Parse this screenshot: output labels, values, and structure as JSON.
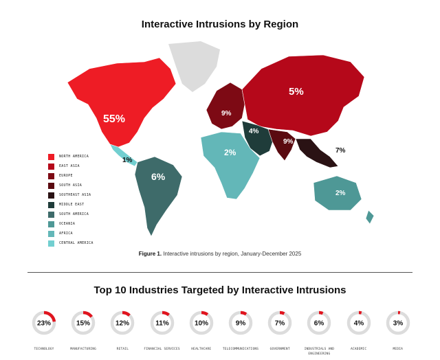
{
  "map_title": "Interactive Intrusions by Region",
  "caption_bold": "Figure 1.",
  "caption_text": " Interactive intrusions by region, January-December 2025",
  "industries_title": "Top 10 Industries Targeted by Interactive Intrusions",
  "colors": {
    "north_america": "#ee1c25",
    "east_asia": "#b5081a",
    "europe": "#7d0a14",
    "south_asia": "#5a0a10",
    "southeast_asia": "#2a1214",
    "middle_east": "#1f3c3a",
    "south_america": "#3e6b6a",
    "oceania": "#4e9896",
    "africa": "#63b7b8",
    "central_america": "#72cfd0",
    "no_data": "#dcdcdc",
    "donut_track": "#dcdcdc",
    "donut_fill": "#e0141e"
  },
  "chart_data": [
    {
      "type": "map",
      "title": "Interactive Intrusions by Region",
      "legend": [
        {
          "name": "NORTH AMERICA",
          "color": "#ee1c25",
          "value": 55
        },
        {
          "name": "EAST ASIA",
          "color": "#b5081a",
          "value": 5
        },
        {
          "name": "EUROPE",
          "color": "#7d0a14",
          "value": 9
        },
        {
          "name": "SOUTH ASIA",
          "color": "#5a0a10",
          "value": 9
        },
        {
          "name": "SOUTHEAST ASIA",
          "color": "#2a1214",
          "value": 7
        },
        {
          "name": "MIDDLE EAST",
          "color": "#1f3c3a",
          "value": 4
        },
        {
          "name": "SOUTH AMERICA",
          "color": "#3e6b6a",
          "value": 6
        },
        {
          "name": "OCEANIA",
          "color": "#4e9896",
          "value": 2
        },
        {
          "name": "AFRICA",
          "color": "#63b7b8",
          "value": 2
        },
        {
          "name": "CENTRAL AMERICA",
          "color": "#72cfd0",
          "value": 1
        }
      ],
      "value_labels": [
        "55%",
        "5%",
        "9%",
        "9%",
        "7%",
        "4%",
        "6%",
        "2%",
        "2%",
        "1%"
      ],
      "legend_position": "bottom-left"
    },
    {
      "type": "donut",
      "title": "Top 10 Industries Targeted by Interactive Intrusions",
      "categories": [
        "TECHNOLOGY",
        "MANUFACTURING",
        "RETAIL",
        "FINANCIAL SERVICES",
        "HEALTHCARE",
        "TELECOMMUNICATIONS",
        "GOVERNMENT",
        "INDUSTRIALS AND ENGINEERING",
        "ACADEMIC",
        "MEDIA"
      ],
      "values": [
        23,
        15,
        12,
        11,
        10,
        9,
        7,
        6,
        4,
        3
      ],
      "labels": [
        "23%",
        "15%",
        "12%",
        "11%",
        "10%",
        "9%",
        "7%",
        "6%",
        "4%",
        "3%"
      ]
    }
  ]
}
